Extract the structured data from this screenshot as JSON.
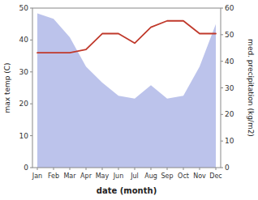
{
  "chart_data": {
    "type": "line",
    "categories": [
      "Jan",
      "Feb",
      "Mar",
      "Apr",
      "May",
      "Jun",
      "Jul",
      "Aug",
      "Sep",
      "Oct",
      "Nov",
      "Dec"
    ],
    "xlabel": "date (month)",
    "ylabel": "max temp (C)",
    "y2label": "med. precipitation (kg/m2)",
    "series": [
      {
        "type": "area",
        "axis": "y2",
        "color": "#b0b8e8",
        "values": [
          58,
          56,
          49,
          38,
          32,
          27,
          26,
          31,
          26,
          27,
          38,
          54
        ]
      },
      {
        "type": "line",
        "color": "#c0392b",
        "values": [
          36,
          36,
          36,
          37,
          42,
          42,
          39,
          44,
          46,
          46,
          42,
          42
        ]
      }
    ],
    "ylim": [
      0,
      50
    ],
    "yticks": [
      0,
      10,
      20,
      30,
      40,
      50
    ],
    "y2lim": [
      0,
      60
    ],
    "y2ticks": [
      0,
      10,
      20,
      30,
      40,
      50,
      60
    ],
    "grid": false
  }
}
